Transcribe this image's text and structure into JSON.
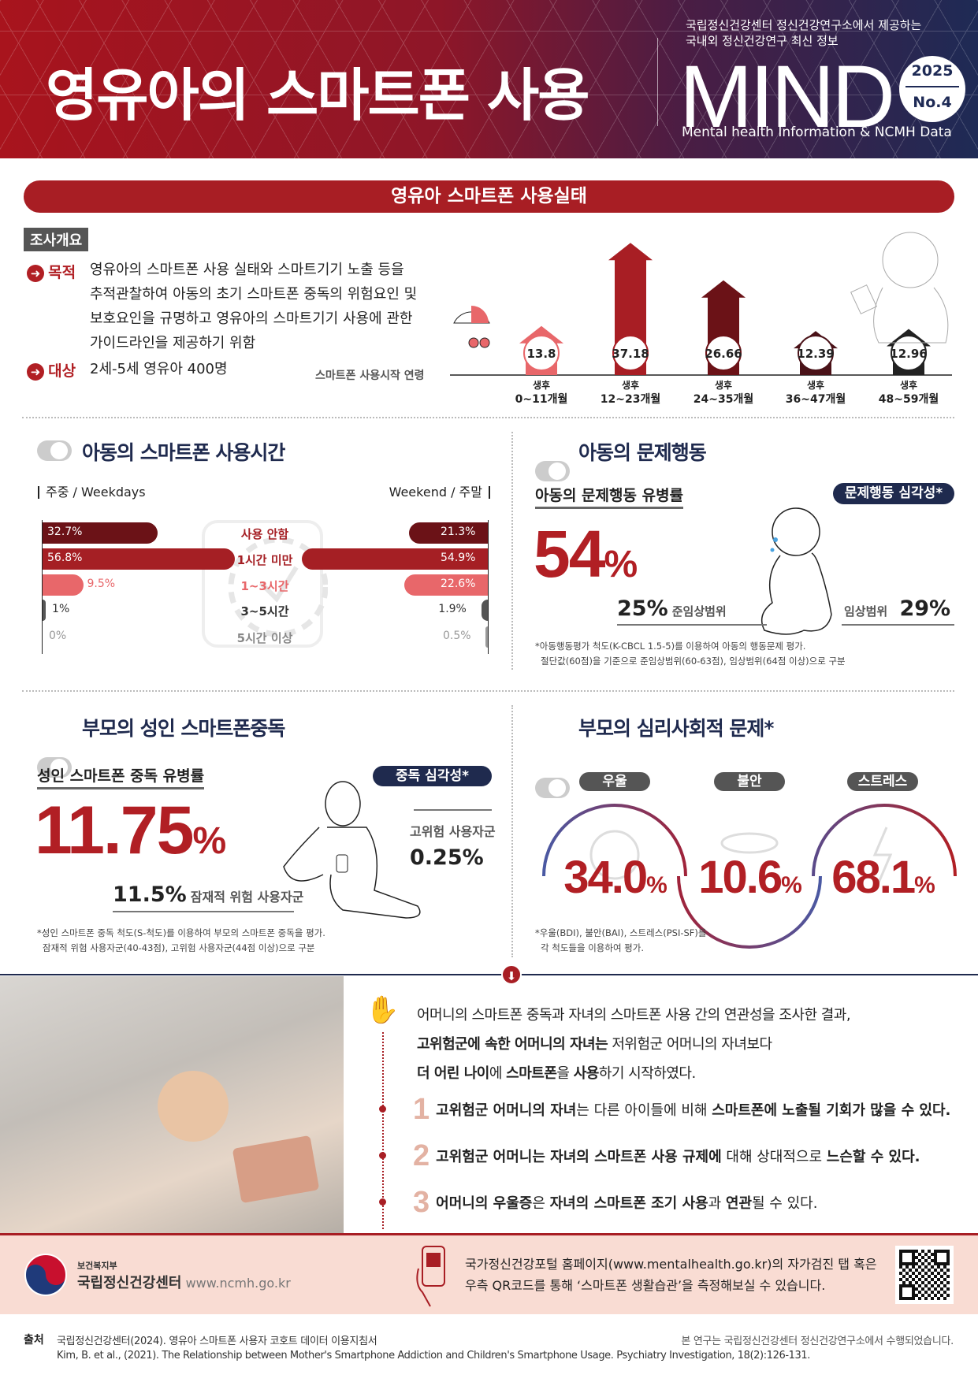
{
  "header": {
    "title": "영유아의 스마트폰 사용",
    "subtitle_line1": "국립정신건강센터 정신건강연구소에서 제공하는",
    "subtitle_line2": "국내외 정신건강연구 최신 정보",
    "brand": "MIND",
    "year": "2025",
    "issue": "No.4",
    "tagline": "Mental health Information & NCMH Data"
  },
  "banner": "영유아 스마트폰 사용실태",
  "overview": {
    "tag": "조사개요",
    "purpose_label": "목적",
    "purpose_lines": [
      "영유아의 스마트폰 사용 실태와 스마트기기 노출 등을",
      "추적관찰하여 아동의 초기 스마트폰 중독의 위험요인 및",
      "보호요인을 규명하고 영유아의 스마트기기 사용에 관한",
      "가이드라인을 제공하기 위함"
    ],
    "target_label": "대상",
    "target": "2세-5세 영유아 400명"
  },
  "start_age": {
    "label": "스마트폰 사용시작 연령",
    "colors": [
      "#e8676a",
      "#a81e24",
      "#6b1217",
      "#4a1218",
      "#222222"
    ],
    "items": [
      {
        "prefix": "생후",
        "range": "0~11개월",
        "value": "13.8"
      },
      {
        "prefix": "생후",
        "range": "12~23개월",
        "value": "37.18"
      },
      {
        "prefix": "생후",
        "range": "24~35개월",
        "value": "26.66"
      },
      {
        "prefix": "생후",
        "range": "36~47개월",
        "value": "12.39"
      },
      {
        "prefix": "생후",
        "range": "48~59개월",
        "value": "12.96"
      }
    ]
  },
  "usage": {
    "title": "아동의 스마트폰 사용시간",
    "weekdays": "주중 / Weekdays",
    "weekend": "Weekend / 주말",
    "rows": [
      {
        "label": "사용 안함",
        "weekday": "32.7%",
        "weekend": "21.3%",
        "wd": 32.7,
        "we": 21.3,
        "color": "#6b1217",
        "icon": "no-phone-icon"
      },
      {
        "label": "1시간 미만",
        "weekday": "56.8%",
        "weekend": "54.9%",
        "wd": 56.8,
        "we": 54.9,
        "color": "#a51f24",
        "icon": "clock-quarter-icon"
      },
      {
        "label": "1~3시간",
        "weekday": "9.5%",
        "weekend": "22.6%",
        "wd": 9.5,
        "we": 22.6,
        "color": "#e8676a",
        "icon": "clock-half-icon"
      },
      {
        "label": "3~5시간",
        "weekday": "1%",
        "weekend": "1.9%",
        "wd": 1,
        "we": 1.9,
        "color": "#555555"
      },
      {
        "label": "5시간 이상",
        "weekday": "0%",
        "weekend": "0.5%",
        "wd": 0,
        "we": 0.5,
        "color": "#999999"
      }
    ]
  },
  "behavior": {
    "title": "아동의 문제행동",
    "subtitle": "아동의 문제행동 유병률",
    "badge": "문제행동 심각성*",
    "value": "54",
    "unit": "%",
    "sub_value": "25%",
    "sub_label": "준임상범위",
    "clin_label": "임상범위",
    "clin_value": "29%",
    "foot1": "*아동행동평가 척도(K-CBCL 1.5-5)를 이용하여 아동의 행동문제 평가.",
    "foot2": "절단값(60점)을 기준으로 준임상범위(60-63점), 임상범위(64점 이상)으로 구분"
  },
  "parent_addiction": {
    "title": "부모의 성인 스마트폰중독",
    "subtitle": "성인 스마트폰 중독 유병률",
    "badge": "중독 심각성*",
    "value": "11.75",
    "unit": "%",
    "high_label": "고위험 사용자군",
    "high_value": "0.25%",
    "risk_value": "11.5%",
    "risk_label": "잠재적 위험 사용자군",
    "foot1": "*성인 스마트폰 중독 척도(S-척도)를 이용하여 부모의 스마트폰 중독을 평가.",
    "foot2": "잠재적 위험 사용자군(40-43점), 고위험 사용자군(44점 이상)으로 구분"
  },
  "parent_psych": {
    "title": "부모의 심리사회적 문제*",
    "items": [
      {
        "label": "우울",
        "value": "34.0",
        "unit": "%"
      },
      {
        "label": "불안",
        "value": "10.6",
        "unit": "%"
      },
      {
        "label": "스트레스",
        "value": "68.1",
        "unit": "%"
      }
    ],
    "foot1": "*우울(BDI), 불안(BAI), 스트레스(PSI-SF)를",
    "foot2": "각 척도들을 이용하여 평가."
  },
  "finding": {
    "line1": "어머니의 스마트폰 중독과 자녀의 스마트폰 사용 간의 연관성을 조사한 결과,",
    "line2_bold": "고위험군에 속한 어머니의 자녀는",
    "line2_rest": " 저위험군 어머니의 자녀보다",
    "line3_a": "더 어린 나이",
    "line3_b": "에 ",
    "line3_c": "스마트폰",
    "line3_d": "을 ",
    "line3_e": "사용",
    "line3_f": "하기 시작하였다.",
    "points": [
      {
        "num": "1",
        "b1": "고위험군 어머니의 자녀",
        "t1": "는 다른 아이들에 비해 ",
        "b2": "스마트폰에 노출될 기회가 많을 수 있다."
      },
      {
        "num": "2",
        "b1": "고위험군 어머니는 자녀의 스마트폰 사용 규제에",
        "t1": " 대해 상대적으로 ",
        "b2": "느슨할 수 있다."
      },
      {
        "num": "3",
        "b1": "어머니의 우울증",
        "t1": "은 ",
        "b2": "자녀의 스마트폰 조기 사용",
        "t2": "과 ",
        "b3": "연관",
        "t3": "될 수 있다."
      }
    ]
  },
  "footer": {
    "ministry": "보건복지부",
    "org": "국립정신건강센터",
    "url": "www.ncmh.go.kr",
    "qr_line1": "국가정신건강포털 홈페이지(www.mentalhealth.go.kr)의 자가검진 탭 혹은",
    "qr_line2": "우측 QR코드를 통해 ‘스마트폰 생활습관’을 측정해보실 수 있습니다."
  },
  "source": {
    "label": "출처",
    "line1": "국립정신건강센터(2024). 영유아 스마트폰 사용자 코호트 데이터 이용지침서",
    "note": "본 연구는 국립정신건강센터 정신건강연구소에서 수행되었습니다.",
    "line2": "Kim, B. et al., (2021). The Relationship between Mother's Smartphone Addiction and Children's Smartphone Usage. Psychiatry Investigation, 18(2):126-131."
  }
}
